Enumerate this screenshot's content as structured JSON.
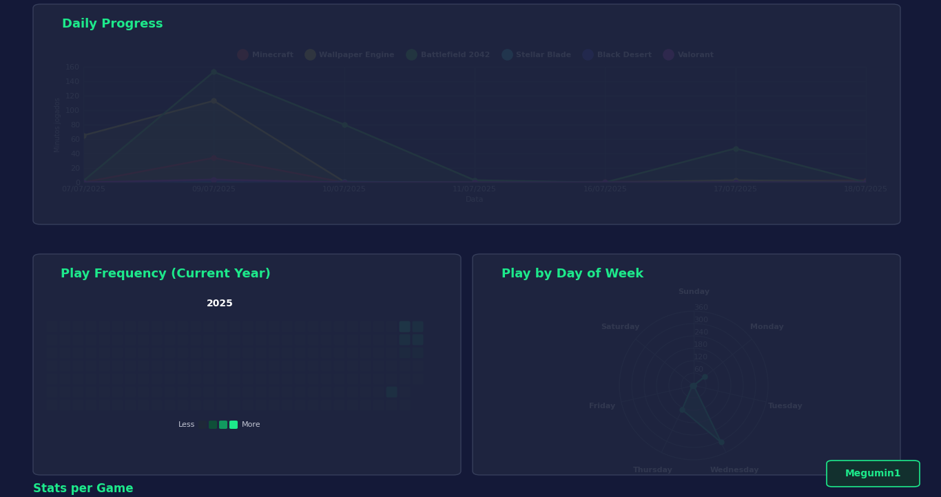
{
  "chart_data": [
    {
      "type": "line",
      "title": "Daily Progress",
      "x_label": "Data",
      "y_label": "Minutos jogados",
      "categories": [
        "07/07/2025",
        "09/07/2025",
        "10/07/2025",
        "11/07/2025",
        "16/07/2025",
        "17/07/2025",
        "18/07/2025"
      ],
      "series": [
        {
          "name": "Minecraft",
          "color": "#e8423f",
          "values": [
            0,
            34,
            0,
            0,
            1,
            2,
            3
          ]
        },
        {
          "name": "Wallpaper Engine",
          "color": "#e6e63a",
          "values": [
            65,
            113,
            1,
            0,
            0,
            3,
            1
          ]
        },
        {
          "name": "Battlefield 2042",
          "color": "#4fe04a",
          "values": [
            2,
            153,
            80,
            3,
            0,
            47,
            0
          ]
        },
        {
          "name": "Stellar Blade",
          "color": "#3ee6e6",
          "values": [
            0,
            0,
            1,
            0,
            0,
            0,
            0
          ]
        },
        {
          "name": "Black Desert",
          "color": "#4747e6",
          "values": [
            0,
            2,
            0,
            0,
            0,
            0,
            0
          ]
        },
        {
          "name": "Valorant",
          "color": "#e040e0",
          "values": [
            0,
            4,
            0,
            0,
            0,
            0,
            0
          ]
        }
      ],
      "ylim": [
        0,
        160
      ],
      "yticks": [
        0,
        20,
        40,
        60,
        80,
        100,
        120,
        140,
        160
      ],
      "grid": true,
      "legend": "top",
      "marker": "circle"
    },
    {
      "type": "heatmap",
      "title": "Play Frequency (Current Year)",
      "subtitle": "2025",
      "cells": [
        [
          0,
          0,
          0,
          0,
          0,
          0,
          0,
          0,
          0,
          0,
          0,
          0,
          0,
          0,
          0,
          0,
          0,
          0,
          0,
          0,
          0,
          0,
          0,
          0,
          0,
          0,
          0,
          3,
          2
        ],
        [
          0,
          0,
          0,
          0,
          0,
          0,
          0,
          0,
          0,
          0,
          0,
          0,
          0,
          0,
          0,
          0,
          0,
          0,
          0,
          0,
          0,
          0,
          0,
          0,
          0,
          0,
          0,
          2,
          2
        ],
        [
          0,
          0,
          0,
          0,
          0,
          0,
          0,
          0,
          0,
          0,
          0,
          0,
          0,
          0,
          0,
          0,
          0,
          0,
          0,
          0,
          0,
          0,
          0,
          0,
          0,
          0,
          0,
          1,
          1
        ],
        [
          0,
          0,
          0,
          0,
          0,
          0,
          0,
          0,
          0,
          0,
          0,
          0,
          0,
          0,
          0,
          0,
          0,
          0,
          0,
          0,
          0,
          0,
          0,
          0,
          0,
          0,
          0,
          0,
          0
        ],
        [
          0,
          0,
          0,
          0,
          0,
          0,
          0,
          0,
          0,
          0,
          0,
          0,
          0,
          0,
          0,
          0,
          0,
          0,
          0,
          0,
          0,
          0,
          0,
          0,
          0,
          0,
          0,
          0,
          0
        ],
        [
          0,
          0,
          0,
          0,
          0,
          0,
          0,
          0,
          0,
          0,
          0,
          0,
          0,
          0,
          0,
          0,
          0,
          0,
          0,
          0,
          0,
          0,
          0,
          0,
          0,
          0,
          2,
          0,
          null
        ],
        [
          0,
          0,
          0,
          0,
          0,
          0,
          0,
          0,
          0,
          0,
          0,
          0,
          0,
          0,
          0,
          0,
          0,
          0,
          0,
          0,
          0,
          0,
          0,
          0,
          0,
          0,
          0,
          0,
          null
        ]
      ],
      "colors": [
        "#1f2838",
        "#0f4f38",
        "#11995f",
        "#1de98b"
      ],
      "scale_labels": [
        "Less",
        "More"
      ],
      "tick_labels": false
    },
    {
      "type": "radar",
      "title": "Play by Day of Week",
      "categories": [
        "Sunday",
        "Monday",
        "Tuesday",
        "Wednesday",
        "Thursday",
        "Friday",
        "Saturday"
      ],
      "values": [
        0,
        70,
        0,
        305,
        130,
        7,
        0
      ],
      "color": "#1de98b",
      "ylim": [
        0,
        360
      ],
      "yticks": [
        60,
        120,
        180,
        240,
        300,
        360
      ],
      "grid": true,
      "marker": "circle"
    }
  ],
  "page": {
    "button": "Megumin1",
    "next_section": "Stats per Game"
  }
}
